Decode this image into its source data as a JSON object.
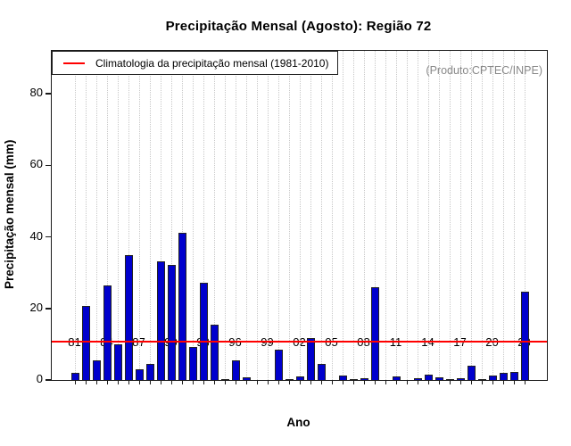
{
  "chart_data": {
    "type": "bar",
    "title": "Precipitação Mensal (Agosto): Região 72",
    "xlabel": "Ano",
    "ylabel": "Precipitação mensal (mm)",
    "annotation": "(Produto:CPTEC/INPE)",
    "x": [
      1981,
      1982,
      1983,
      1984,
      1985,
      1986,
      1987,
      1988,
      1989,
      1990,
      1991,
      1992,
      1993,
      1994,
      1995,
      1996,
      1997,
      1998,
      1999,
      2000,
      2001,
      2002,
      2003,
      2004,
      2005,
      2006,
      2007,
      2008,
      2009,
      2010,
      2011,
      2012,
      2013,
      2014,
      2015,
      2016,
      2017,
      2018,
      2019,
      2020,
      2021,
      2022,
      2023
    ],
    "values": [
      2.0,
      20.7,
      5.6,
      26.4,
      10.0,
      34.8,
      2.9,
      4.6,
      33.2,
      32.1,
      41.2,
      9.2,
      27.2,
      15.4,
      0.3,
      5.5,
      0.7,
      0,
      0,
      8.4,
      0.3,
      1.0,
      11.6,
      4.5,
      0,
      1.3,
      0.2,
      0.5,
      26.0,
      0,
      1.0,
      0,
      0.5,
      1.4,
      0.8,
      0.2,
      0.4,
      4.0,
      0.2,
      1.2,
      1.9,
      2.3,
      24.6
    ],
    "x_tick_labels": [
      "81",
      "84",
      "87",
      "90",
      "93",
      "96",
      "99",
      "02",
      "05",
      "08",
      "11",
      "14",
      "17",
      "20",
      "23"
    ],
    "x_tick_label_interval": 3,
    "y_ticks": [
      0,
      20,
      40,
      60,
      80
    ],
    "ylim": [
      0,
      92
    ],
    "grid": "vertical dotted gridline per year",
    "legend_position": "top-left inside plot",
    "bar_color": "#0000CD",
    "bar_border_color": "#222222",
    "climatology_line": {
      "label": "Climatologia da precipitação mensal (1981-2010)",
      "value": 10.7,
      "color": "#FF0000"
    }
  }
}
